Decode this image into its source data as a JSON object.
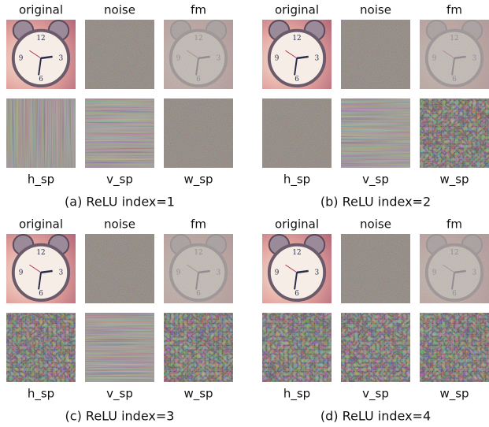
{
  "panels": [
    {
      "top_labels": [
        "original",
        "noise",
        "fm"
      ],
      "bottom_labels": [
        "h_sp",
        "v_sp",
        "w_sp"
      ],
      "caption": "(a) ReLU index=1"
    },
    {
      "top_labels": [
        "original",
        "noise",
        "fm"
      ],
      "bottom_labels": [
        "h_sp",
        "v_sp",
        "w_sp"
      ],
      "caption": "(b) ReLU index=2"
    },
    {
      "top_labels": [
        "original",
        "noise",
        "fm"
      ],
      "bottom_labels": [
        "h_sp",
        "v_sp",
        "w_sp"
      ],
      "caption": "(c) ReLU index=3"
    },
    {
      "top_labels": [
        "original",
        "noise",
        "fm"
      ],
      "bottom_labels": [
        "h_sp",
        "v_sp",
        "w_sp"
      ],
      "caption": "(d) ReLU index=4"
    }
  ]
}
